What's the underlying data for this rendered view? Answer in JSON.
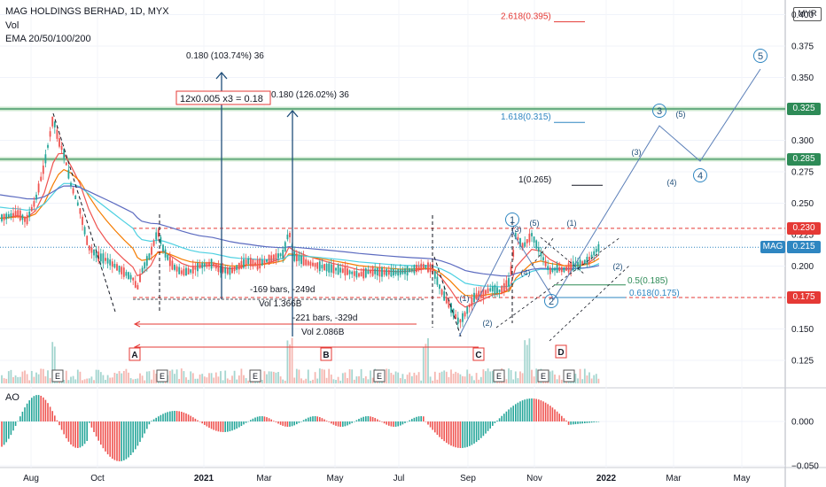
{
  "header": {
    "symbol_line": "MAG HOLDINGS BERHAD, 1D, MYX",
    "indicator_vol": "Vol",
    "indicator_ema": "EMA 20/50/100/200",
    "currency": "MYR"
  },
  "chart_data": [
    {
      "type": "candlestick",
      "title": "MAG HOLDINGS BERHAD, 1D, MYX",
      "ylim": [
        0.105,
        0.4
      ],
      "y_ticks": [
        0.125,
        0.15,
        0.175,
        0.2,
        0.225,
        0.25,
        0.275,
        0.3,
        0.325,
        0.35,
        0.375,
        0.4
      ],
      "y_tick_labels": [
        "0.125",
        "0.150",
        "0.175",
        "0.200",
        "0.225",
        "0.250",
        "0.275",
        "0.300",
        "0.325",
        "0.350",
        "0.375",
        "0.400"
      ],
      "x_tick_labels": [
        "Aug",
        "Oct",
        "2021",
        "Mar",
        "May",
        "Jul",
        "Sep",
        "Nov",
        "2022",
        "Mar",
        "May"
      ],
      "grid": true,
      "last_price": {
        "label": "MAG",
        "value": "0.215"
      },
      "price_markers": [
        {
          "label": "0.325",
          "value": 0.325,
          "color": "#2e8b57"
        },
        {
          "label": "0.285",
          "value": 0.285,
          "color": "#2e8b57"
        },
        {
          "label": "0.230",
          "value": 0.23,
          "color": "#e53935"
        },
        {
          "label": "0.175",
          "value": 0.175,
          "color": "#e53935"
        }
      ],
      "fibonacci": [
        {
          "label": "2.618(0.395)",
          "value": 0.395,
          "color": "#e53935"
        },
        {
          "label": "1.618(0.315)",
          "value": 0.315,
          "color": "#2e86c1"
        },
        {
          "label": "1(0.265)",
          "value": 0.265,
          "color": "#131722"
        },
        {
          "label": "0.5(0.185)",
          "value": 0.185,
          "color": "#2e8b57"
        },
        {
          "label": "0.618(0.175)",
          "value": 0.175,
          "color": "#2e86c1"
        }
      ],
      "annotations": [
        "0.180 (103.74%) 36",
        "12x0.005 x3 = 0.18",
        "0.180 (126.02%) 36",
        "-169 bars, -249d",
        "Vol 1.366B",
        "-221 bars, -329d",
        "Vol 2.086B"
      ],
      "point_labels": [
        "A",
        "B",
        "C",
        "D"
      ],
      "wave_labels_major": [
        "1",
        "2",
        "3",
        "4",
        "5"
      ],
      "wave_labels_minor": [
        "(1)",
        "(2)",
        "(3)",
        "(4)",
        "(5)",
        "(1)",
        "(2)",
        "(3)",
        "(4)",
        "(5)"
      ],
      "earnings_markers": [
        "E",
        "E",
        "E",
        "E",
        "E",
        "E",
        "E"
      ],
      "price_path": [
        [
          0,
          0.238
        ],
        [
          10,
          0.24
        ],
        [
          20,
          0.242
        ],
        [
          30,
          0.236
        ],
        [
          40,
          0.252
        ],
        [
          50,
          0.28
        ],
        [
          60,
          0.318
        ],
        [
          66,
          0.3
        ],
        [
          72,
          0.29
        ],
        [
          80,
          0.265
        ],
        [
          90,
          0.245
        ],
        [
          100,
          0.215
        ],
        [
          110,
          0.208
        ],
        [
          120,
          0.205
        ],
        [
          130,
          0.2
        ],
        [
          140,
          0.195
        ],
        [
          150,
          0.19
        ],
        [
          155,
          0.182
        ],
        [
          160,
          0.196
        ],
        [
          170,
          0.21
        ],
        [
          178,
          0.228
        ],
        [
          185,
          0.212
        ],
        [
          195,
          0.2
        ],
        [
          205,
          0.195
        ],
        [
          215,
          0.196
        ],
        [
          225,
          0.2
        ],
        [
          240,
          0.202
        ],
        [
          250,
          0.197
        ],
        [
          260,
          0.196
        ],
        [
          270,
          0.2
        ],
        [
          280,
          0.204
        ],
        [
          290,
          0.201
        ],
        [
          300,
          0.204
        ],
        [
          310,
          0.207
        ],
        [
          320,
          0.21
        ],
        [
          326,
          0.228
        ],
        [
          332,
          0.208
        ],
        [
          345,
          0.203
        ],
        [
          360,
          0.2
        ],
        [
          375,
          0.198
        ],
        [
          390,
          0.196
        ],
        [
          405,
          0.193
        ],
        [
          420,
          0.196
        ],
        [
          435,
          0.195
        ],
        [
          450,
          0.195
        ],
        [
          465,
          0.197
        ],
        [
          478,
          0.2
        ],
        [
          488,
          0.198
        ],
        [
          498,
          0.18
        ],
        [
          508,
          0.168
        ],
        [
          518,
          0.155
        ],
        [
          525,
          0.162
        ],
        [
          535,
          0.175
        ],
        [
          545,
          0.178
        ],
        [
          555,
          0.182
        ],
        [
          565,
          0.18
        ],
        [
          575,
          0.188
        ],
        [
          582,
          0.225
        ],
        [
          590,
          0.215
        ],
        [
          600,
          0.225
        ],
        [
          610,
          0.21
        ],
        [
          620,
          0.196
        ],
        [
          628,
          0.198
        ],
        [
          636,
          0.197
        ],
        [
          646,
          0.2
        ],
        [
          656,
          0.202
        ],
        [
          664,
          0.205
        ],
        [
          670,
          0.21
        ],
        [
          676,
          0.215
        ]
      ]
    },
    {
      "type": "bar",
      "title": "AO",
      "ylim": [
        -0.06,
        0.035
      ],
      "y_ticks": [
        -0.05,
        0.0
      ],
      "y_tick_labels": [
        "−0.050",
        "0.000"
      ],
      "grid": true
    }
  ]
}
